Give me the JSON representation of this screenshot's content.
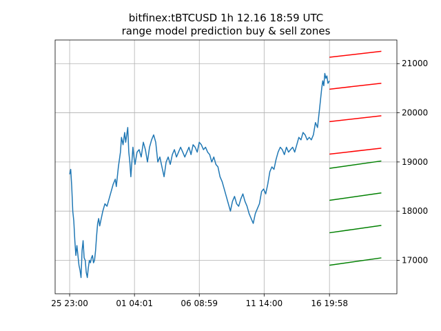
{
  "chart_data": {
    "type": "line",
    "title": "bitfinex:tBTCUSD 1h 12.16 18:59 UTC",
    "subtitle": "range model prediction buy & sell zones",
    "x_tick_labels": [
      "25 23:00",
      "01 04:01",
      "06 08:59",
      "11 14:00",
      "16 19:58"
    ],
    "x_tick_hours": [
      0,
      125,
      250,
      375,
      501
    ],
    "x_range_hours": [
      -28,
      631
    ],
    "y_ticks": [
      17000,
      18000,
      19000,
      20000,
      21000
    ],
    "ylim": [
      16320,
      21480
    ],
    "y_axis_side": "right",
    "grid": true,
    "price_series": {
      "color": "#1f77b4",
      "points": [
        [
          0,
          18750
        ],
        [
          2,
          18850
        ],
        [
          4,
          18500
        ],
        [
          6,
          18000
        ],
        [
          8,
          17800
        ],
        [
          10,
          17400
        ],
        [
          12,
          17100
        ],
        [
          14,
          17300
        ],
        [
          16,
          17100
        ],
        [
          18,
          16900
        ],
        [
          20,
          16800
        ],
        [
          22,
          16650
        ],
        [
          24,
          17200
        ],
        [
          26,
          17400
        ],
        [
          28,
          17050
        ],
        [
          30,
          17000
        ],
        [
          32,
          16750
        ],
        [
          34,
          16650
        ],
        [
          36,
          16850
        ],
        [
          38,
          17000
        ],
        [
          40,
          16950
        ],
        [
          42,
          17050
        ],
        [
          44,
          17100
        ],
        [
          46,
          16950
        ],
        [
          48,
          17000
        ],
        [
          50,
          17200
        ],
        [
          52,
          17500
        ],
        [
          54,
          17750
        ],
        [
          56,
          17850
        ],
        [
          58,
          17700
        ],
        [
          60,
          17800
        ],
        [
          62,
          17900
        ],
        [
          64,
          18000
        ],
        [
          68,
          18150
        ],
        [
          72,
          18100
        ],
        [
          76,
          18250
        ],
        [
          80,
          18400
        ],
        [
          84,
          18550
        ],
        [
          88,
          18650
        ],
        [
          90,
          18500
        ],
        [
          94,
          18900
        ],
        [
          98,
          19200
        ],
        [
          100,
          19500
        ],
        [
          103,
          19350
        ],
        [
          106,
          19600
        ],
        [
          108,
          19400
        ],
        [
          110,
          19550
        ],
        [
          112,
          19700
        ],
        [
          114,
          19200
        ],
        [
          116,
          19000
        ],
        [
          118,
          18700
        ],
        [
          120,
          19000
        ],
        [
          122,
          19300
        ],
        [
          124,
          19100
        ],
        [
          126,
          18950
        ],
        [
          130,
          19200
        ],
        [
          134,
          19250
        ],
        [
          138,
          19100
        ],
        [
          142,
          19400
        ],
        [
          146,
          19250
        ],
        [
          150,
          19000
        ],
        [
          154,
          19300
        ],
        [
          158,
          19450
        ],
        [
          162,
          19550
        ],
        [
          166,
          19400
        ],
        [
          170,
          19000
        ],
        [
          174,
          19100
        ],
        [
          178,
          18900
        ],
        [
          182,
          18700
        ],
        [
          186,
          19000
        ],
        [
          190,
          19100
        ],
        [
          194,
          18950
        ],
        [
          198,
          19150
        ],
        [
          202,
          19250
        ],
        [
          206,
          19100
        ],
        [
          210,
          19200
        ],
        [
          214,
          19300
        ],
        [
          218,
          19200
        ],
        [
          222,
          19100
        ],
        [
          226,
          19200
        ],
        [
          230,
          19300
        ],
        [
          234,
          19150
        ],
        [
          238,
          19350
        ],
        [
          242,
          19300
        ],
        [
          246,
          19200
        ],
        [
          250,
          19400
        ],
        [
          254,
          19350
        ],
        [
          258,
          19250
        ],
        [
          262,
          19300
        ],
        [
          266,
          19200
        ],
        [
          270,
          19150
        ],
        [
          274,
          19000
        ],
        [
          278,
          19100
        ],
        [
          282,
          18950
        ],
        [
          286,
          18900
        ],
        [
          290,
          18700
        ],
        [
          294,
          18600
        ],
        [
          298,
          18450
        ],
        [
          302,
          18300
        ],
        [
          306,
          18150
        ],
        [
          310,
          18000
        ],
        [
          314,
          18200
        ],
        [
          318,
          18300
        ],
        [
          322,
          18150
        ],
        [
          326,
          18100
        ],
        [
          330,
          18250
        ],
        [
          334,
          18350
        ],
        [
          338,
          18200
        ],
        [
          342,
          18100
        ],
        [
          346,
          17950
        ],
        [
          350,
          17850
        ],
        [
          354,
          17750
        ],
        [
          358,
          17950
        ],
        [
          362,
          18050
        ],
        [
          366,
          18150
        ],
        [
          370,
          18400
        ],
        [
          374,
          18450
        ],
        [
          378,
          18350
        ],
        [
          382,
          18550
        ],
        [
          386,
          18800
        ],
        [
          390,
          18900
        ],
        [
          394,
          18850
        ],
        [
          398,
          19050
        ],
        [
          402,
          19200
        ],
        [
          406,
          19300
        ],
        [
          410,
          19250
        ],
        [
          414,
          19150
        ],
        [
          418,
          19300
        ],
        [
          422,
          19200
        ],
        [
          426,
          19250
        ],
        [
          430,
          19300
        ],
        [
          434,
          19200
        ],
        [
          438,
          19350
        ],
        [
          442,
          19500
        ],
        [
          446,
          19450
        ],
        [
          450,
          19600
        ],
        [
          454,
          19550
        ],
        [
          458,
          19450
        ],
        [
          462,
          19500
        ],
        [
          466,
          19450
        ],
        [
          470,
          19550
        ],
        [
          474,
          19800
        ],
        [
          478,
          19700
        ],
        [
          482,
          20100
        ],
        [
          486,
          20500
        ],
        [
          488,
          20650
        ],
        [
          490,
          20550
        ],
        [
          492,
          20800
        ],
        [
          494,
          20700
        ],
        [
          496,
          20750
        ],
        [
          498,
          20600
        ],
        [
          501,
          20650
        ]
      ]
    },
    "sell_zones": {
      "color": "#ff0000",
      "lines": [
        [
          21130,
          21250
        ],
        [
          20480,
          20600
        ],
        [
          19820,
          19940
        ],
        [
          19160,
          19280
        ]
      ]
    },
    "buy_zones": {
      "color": "#008000",
      "lines": [
        [
          18870,
          19020
        ],
        [
          18220,
          18370
        ],
        [
          17560,
          17710
        ],
        [
          16900,
          17050
        ]
      ]
    },
    "zone_x_hours": [
      501,
      601
    ]
  }
}
